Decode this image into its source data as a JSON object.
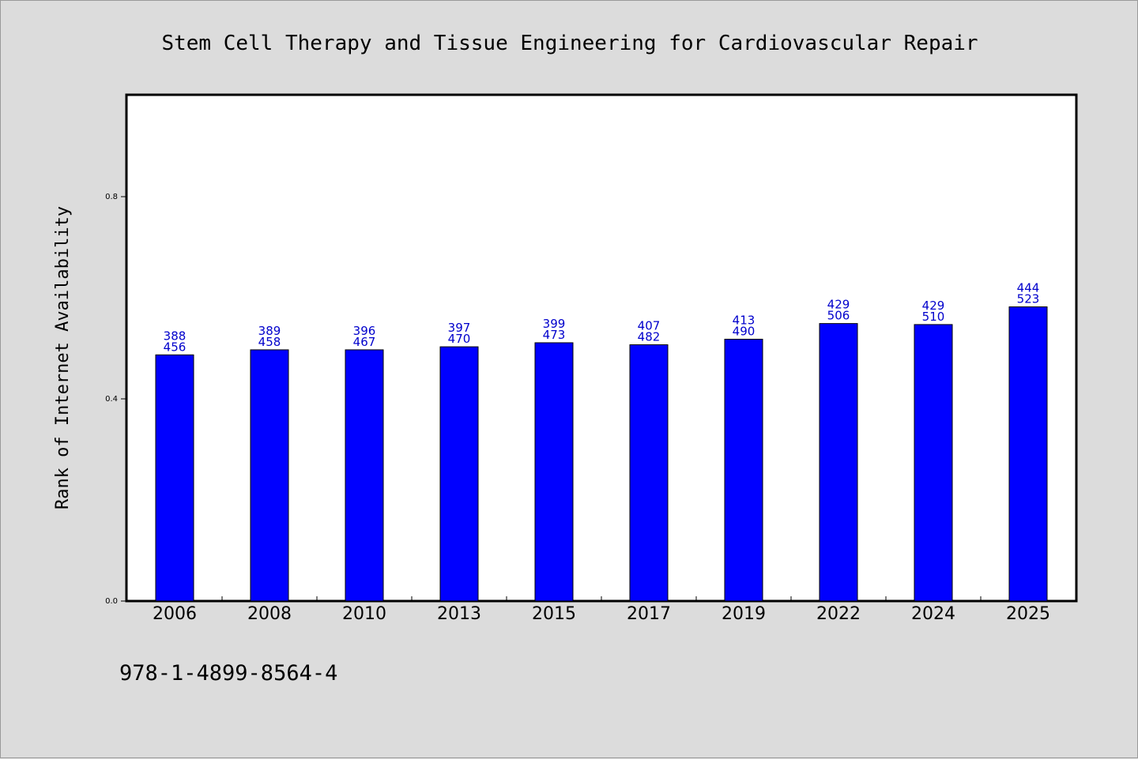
{
  "chart_data": {
    "type": "bar",
    "title": "Stem Cell Therapy and Tissue Engineering for Cardiovascular Repair",
    "xlabel": "",
    "ylabel": "Rank of Internet Availability",
    "categories": [
      "2006",
      "2008",
      "2010",
      "2013",
      "2015",
      "2017",
      "2019",
      "2022",
      "2024",
      "2025"
    ],
    "values": [
      0.487,
      0.497,
      0.497,
      0.503,
      0.511,
      0.507,
      0.518,
      0.549,
      0.547,
      0.582
    ],
    "label_top": [
      "388",
      "389",
      "396",
      "397",
      "399",
      "407",
      "413",
      "429",
      "429",
      "444"
    ],
    "label_bottom": [
      "456",
      "458",
      "467",
      "470",
      "473",
      "482",
      "490",
      "506",
      "510",
      "523"
    ],
    "yticks": [
      "0.0",
      "0.4",
      "0.8"
    ],
    "ylim": [
      0,
      1.0
    ],
    "bar_color": "#0000ff",
    "label_color": "#0000cc",
    "grid": false,
    "legend": "none"
  },
  "footer": {
    "isbn": "978-1-4899-8564-4"
  }
}
